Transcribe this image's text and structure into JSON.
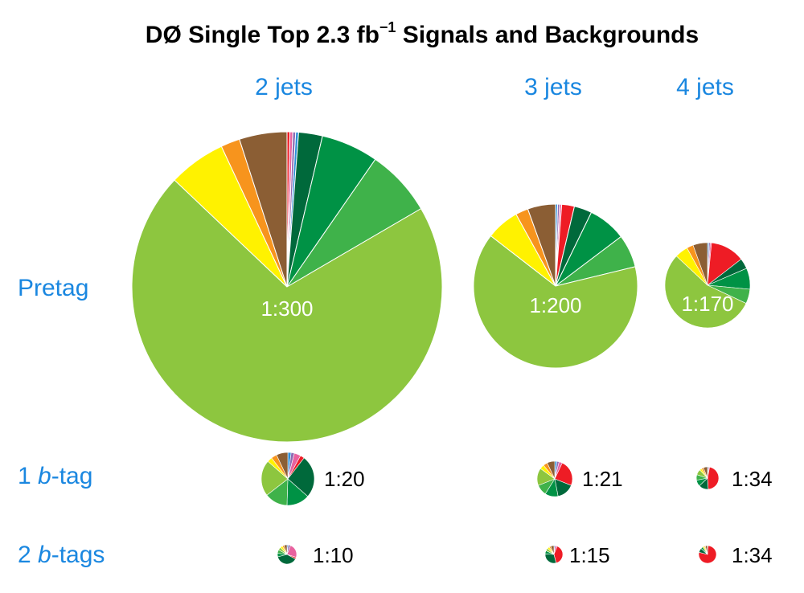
{
  "chart_data": {
    "type": "pie",
    "title_main": "DØ Single Top 2.3 fb",
    "title_sup": "−1",
    "title_rest": " Signals and Backgrounds",
    "columns": [
      "2 jets",
      "3 jets",
      "4 jets"
    ],
    "rows": [
      {
        "prefix": "",
        "italic": "",
        "suffix": "Pretag"
      },
      {
        "prefix": "1 ",
        "italic": "b",
        "suffix": "-tag"
      },
      {
        "prefix": "2 ",
        "italic": "b",
        "suffix": "-tags"
      }
    ],
    "label_color": "#1a87e0",
    "colors": {
      "signal_red": "#ee1c25",
      "pink": "#e8629f",
      "purple": "#8e6bb3",
      "blue": "#2e8fd8",
      "dark_green": "#00693b",
      "green": "#009245",
      "medium_green": "#3fb24a",
      "light_green": "#8dc63f",
      "yellow": "#fff200",
      "orange": "#f7941d",
      "brown": "#8b5e34"
    },
    "pies": [
      {
        "row": 0,
        "col": 0,
        "ratio": "1:300",
        "label_inside": true,
        "slices": [
          {
            "color": "#ee1c25",
            "value": 0.3
          },
          {
            "color": "#e8629f",
            "value": 0.3
          },
          {
            "color": "#8e6bb3",
            "value": 0.3
          },
          {
            "color": "#2e8fd8",
            "value": 0.3
          },
          {
            "color": "#00693b",
            "value": 2.5
          },
          {
            "color": "#009245",
            "value": 6.0
          },
          {
            "color": "#3fb24a",
            "value": 7.0
          },
          {
            "color": "#8dc63f",
            "value": 71.0
          },
          {
            "color": "#fff200",
            "value": 6.0
          },
          {
            "color": "#f7941d",
            "value": 2.0
          },
          {
            "color": "#8b5e34",
            "value": 5.0
          }
        ]
      },
      {
        "row": 0,
        "col": 1,
        "ratio": "1:200",
        "label_inside": true,
        "slices": [
          {
            "color": "#2e8fd8",
            "value": 0.4
          },
          {
            "color": "#8e6bb3",
            "value": 0.4
          },
          {
            "color": "#e8629f",
            "value": 0.4
          },
          {
            "color": "#ee1c25",
            "value": 2.5
          },
          {
            "color": "#00693b",
            "value": 3.5
          },
          {
            "color": "#009245",
            "value": 7.5
          },
          {
            "color": "#3fb24a",
            "value": 6.5
          },
          {
            "color": "#8dc63f",
            "value": 64.3
          },
          {
            "color": "#fff200",
            "value": 6.5
          },
          {
            "color": "#f7941d",
            "value": 2.5
          },
          {
            "color": "#8b5e34",
            "value": 5.5
          }
        ]
      },
      {
        "row": 0,
        "col": 2,
        "ratio": "1:170",
        "label_inside": true,
        "slices": [
          {
            "color": "#2e8fd8",
            "value": 0.5
          },
          {
            "color": "#8e6bb3",
            "value": 0.5
          },
          {
            "color": "#e8629f",
            "value": 0.5
          },
          {
            "color": "#ee1c25",
            "value": 13.0
          },
          {
            "color": "#00693b",
            "value": 4.0
          },
          {
            "color": "#009245",
            "value": 8.0
          },
          {
            "color": "#3fb24a",
            "value": 5.5
          },
          {
            "color": "#8dc63f",
            "value": 55.0
          },
          {
            "color": "#fff200",
            "value": 5.0
          },
          {
            "color": "#f7941d",
            "value": 2.5
          },
          {
            "color": "#8b5e34",
            "value": 5.5
          }
        ]
      },
      {
        "row": 1,
        "col": 0,
        "ratio": "1:20",
        "label_inside": false,
        "slices": [
          {
            "color": "#2e8fd8",
            "value": 2.0
          },
          {
            "color": "#8e6bb3",
            "value": 2.0
          },
          {
            "color": "#e8629f",
            "value": 4.0
          },
          {
            "color": "#ee1c25",
            "value": 2.5
          },
          {
            "color": "#00693b",
            "value": 26.0
          },
          {
            "color": "#009245",
            "value": 14.0
          },
          {
            "color": "#3fb24a",
            "value": 14.0
          },
          {
            "color": "#8dc63f",
            "value": 22.0
          },
          {
            "color": "#fff200",
            "value": 3.0
          },
          {
            "color": "#f7941d",
            "value": 3.5
          },
          {
            "color": "#8b5e34",
            "value": 7.0
          }
        ]
      },
      {
        "row": 1,
        "col": 1,
        "ratio": "1:21",
        "label_inside": false,
        "slices": [
          {
            "color": "#2e8fd8",
            "value": 2.0
          },
          {
            "color": "#8e6bb3",
            "value": 2.0
          },
          {
            "color": "#e8629f",
            "value": 3.0
          },
          {
            "color": "#ee1c25",
            "value": 24.0
          },
          {
            "color": "#00693b",
            "value": 16.0
          },
          {
            "color": "#009245",
            "value": 12.0
          },
          {
            "color": "#3fb24a",
            "value": 10.0
          },
          {
            "color": "#8dc63f",
            "value": 16.0
          },
          {
            "color": "#fff200",
            "value": 4.0
          },
          {
            "color": "#f7941d",
            "value": 4.0
          },
          {
            "color": "#8b5e34",
            "value": 7.0
          }
        ]
      },
      {
        "row": 1,
        "col": 2,
        "ratio": "1:34",
        "label_inside": false,
        "slices": [
          {
            "color": "#2e8fd8",
            "value": 1.5
          },
          {
            "color": "#e8629f",
            "value": 1.5
          },
          {
            "color": "#ee1c25",
            "value": 46.0
          },
          {
            "color": "#00693b",
            "value": 14.0
          },
          {
            "color": "#009245",
            "value": 9.0
          },
          {
            "color": "#3fb24a",
            "value": 8.0
          },
          {
            "color": "#8dc63f",
            "value": 8.0
          },
          {
            "color": "#fff200",
            "value": 3.0
          },
          {
            "color": "#f7941d",
            "value": 3.0
          },
          {
            "color": "#8b5e34",
            "value": 6.0
          }
        ]
      },
      {
        "row": 2,
        "col": 0,
        "ratio": "1:10",
        "label_inside": false,
        "slices": [
          {
            "color": "#2e8fd8",
            "value": 2.0
          },
          {
            "color": "#8e6bb3",
            "value": 4.0
          },
          {
            "color": "#e8629f",
            "value": 24.0
          },
          {
            "color": "#ee1c25",
            "value": 3.0
          },
          {
            "color": "#00693b",
            "value": 38.0
          },
          {
            "color": "#009245",
            "value": 6.0
          },
          {
            "color": "#3fb24a",
            "value": 6.0
          },
          {
            "color": "#8dc63f",
            "value": 5.0
          },
          {
            "color": "#fff200",
            "value": 4.0
          },
          {
            "color": "#f7941d",
            "value": 3.0
          },
          {
            "color": "#8b5e34",
            "value": 5.0
          }
        ]
      },
      {
        "row": 2,
        "col": 1,
        "ratio": "1:15",
        "label_inside": false,
        "slices": [
          {
            "color": "#2e8fd8",
            "value": 2.0
          },
          {
            "color": "#e8629f",
            "value": 4.0
          },
          {
            "color": "#ee1c25",
            "value": 40.0
          },
          {
            "color": "#00693b",
            "value": 30.0
          },
          {
            "color": "#009245",
            "value": 6.0
          },
          {
            "color": "#8dc63f",
            "value": 5.0
          },
          {
            "color": "#fff200",
            "value": 4.0
          },
          {
            "color": "#f7941d",
            "value": 3.0
          },
          {
            "color": "#8b5e34",
            "value": 6.0
          }
        ]
      },
      {
        "row": 2,
        "col": 2,
        "ratio": "1:34",
        "label_inside": false,
        "slices": [
          {
            "color": "#2e8fd8",
            "value": 1.0
          },
          {
            "color": "#ee1c25",
            "value": 78.0
          },
          {
            "color": "#00693b",
            "value": 8.0
          },
          {
            "color": "#009245",
            "value": 4.0
          },
          {
            "color": "#fff200",
            "value": 3.0
          },
          {
            "color": "#f7941d",
            "value": 2.0
          },
          {
            "color": "#8b5e34",
            "value": 4.0
          }
        ]
      }
    ]
  }
}
